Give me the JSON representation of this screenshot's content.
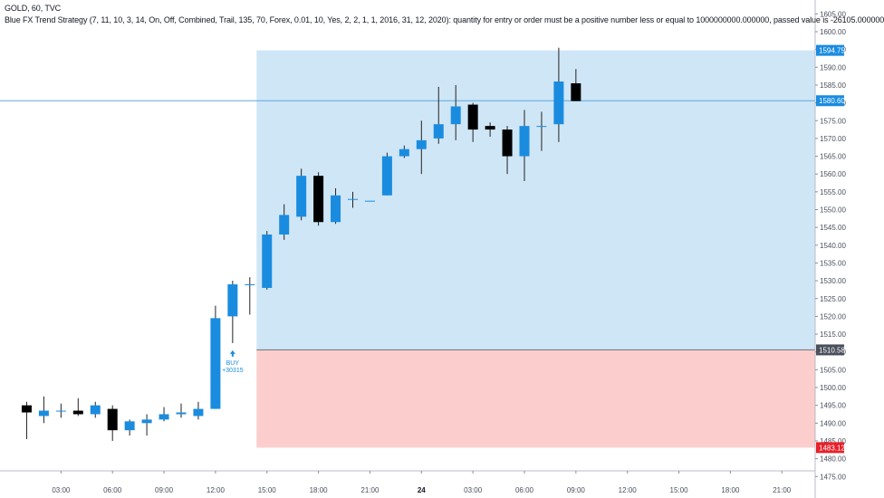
{
  "header": {
    "symbol_line": "GOLD, 60, TVC",
    "strategy_line": "Blue FX Trend Strategy (7, 11, 10, 3, 14, On, Off, Combined, Trail, 135, 70, Forex, 0.01, 10, Yes, 2, 2, 1, 1, 2016, 31, 12, 2020): quantity for entry or order must be a positive number less or equal to 1000000000.000000, passed value is -26105.000000"
  },
  "colors": {
    "bull": "#1a8ce0",
    "bear": "#000000",
    "profit_zone": "#cfe6f6",
    "stop_zone": "#fccdcd",
    "price_line": "#5ea8e0",
    "entry_tag": "#4a4f5c",
    "stop_tag": "#e8202a",
    "target_tag": "#1a8ce0",
    "buy_signal": "#1a8ce0"
  },
  "chart_data": {
    "type": "candlestick",
    "symbol": "GOLD",
    "interval": "60",
    "source": "TVC",
    "ylim": [
      1472,
      1610
    ],
    "y_ticks": [
      "1605.00",
      "1600.00",
      "1595.00",
      "1590.00",
      "1585.00",
      "1580.00",
      "1575.00",
      "1570.00",
      "1565.00",
      "1560.00",
      "1555.00",
      "1550.00",
      "1545.00",
      "1540.00",
      "1535.00",
      "1530.00",
      "1525.00",
      "1520.00",
      "1515.00",
      "1510.00",
      "1505.00",
      "1500.00",
      "1495.00",
      "1490.00",
      "1485.00",
      "1480.00",
      "1475.00"
    ],
    "x_ticks": [
      {
        "label": "03:00",
        "hour": 3,
        "bold": false
      },
      {
        "label": "06:00",
        "hour": 6,
        "bold": false
      },
      {
        "label": "09:00",
        "hour": 9,
        "bold": false
      },
      {
        "label": "12:00",
        "hour": 12,
        "bold": false
      },
      {
        "label": "15:00",
        "hour": 15,
        "bold": false
      },
      {
        "label": "18:00",
        "hour": 18,
        "bold": false
      },
      {
        "label": "21:00",
        "hour": 21,
        "bold": false
      },
      {
        "label": "24",
        "hour": 24,
        "bold": true
      },
      {
        "label": "03:00",
        "hour": 27,
        "bold": false
      },
      {
        "label": "06:00",
        "hour": 30,
        "bold": false
      },
      {
        "label": "09:00",
        "hour": 33,
        "bold": false
      },
      {
        "label": "12:00",
        "hour": 36,
        "bold": false
      },
      {
        "label": "15:00",
        "hour": 39,
        "bold": false
      },
      {
        "label": "18:00",
        "hour": 42,
        "bold": false
      },
      {
        "label": "21:00",
        "hour": 45,
        "bold": false
      }
    ],
    "candles": [
      {
        "hour": 1,
        "open": 1495.0,
        "high": 1496.0,
        "low": 1485.5,
        "close": 1493.0
      },
      {
        "hour": 2,
        "open": 1492.0,
        "high": 1497.5,
        "low": 1490.0,
        "close": 1493.5
      },
      {
        "hour": 3,
        "open": 1493.5,
        "high": 1495.5,
        "low": 1491.5,
        "close": 1493.5
      },
      {
        "hour": 4,
        "open": 1493.5,
        "high": 1497.0,
        "low": 1492.0,
        "close": 1492.5
      },
      {
        "hour": 5,
        "open": 1492.5,
        "high": 1496.0,
        "low": 1491.5,
        "close": 1495.0
      },
      {
        "hour": 6,
        "open": 1494.0,
        "high": 1495.0,
        "low": 1485.0,
        "close": 1488.0
      },
      {
        "hour": 7,
        "open": 1488.0,
        "high": 1491.0,
        "low": 1486.5,
        "close": 1490.5
      },
      {
        "hour": 8,
        "open": 1490.0,
        "high": 1492.5,
        "low": 1486.5,
        "close": 1491.0
      },
      {
        "hour": 9,
        "open": 1491.0,
        "high": 1494.5,
        "low": 1490.5,
        "close": 1492.5
      },
      {
        "hour": 10,
        "open": 1492.5,
        "high": 1495.5,
        "low": 1491.5,
        "close": 1493.0
      },
      {
        "hour": 11,
        "open": 1492.0,
        "high": 1496.0,
        "low": 1491.0,
        "close": 1494.0
      },
      {
        "hour": 12,
        "open": 1494.0,
        "high": 1523.0,
        "low": 1494.0,
        "close": 1519.5
      },
      {
        "hour": 13,
        "open": 1520.0,
        "high": 1530.0,
        "low": 1512.5,
        "close": 1529.0
      },
      {
        "hour": 14,
        "open": 1529.0,
        "high": 1531.0,
        "low": 1520.5,
        "close": 1529.0
      },
      {
        "hour": 15,
        "open": 1528.0,
        "high": 1544.0,
        "low": 1527.5,
        "close": 1543.0
      },
      {
        "hour": 16,
        "open": 1543.0,
        "high": 1551.5,
        "low": 1541.5,
        "close": 1548.5
      },
      {
        "hour": 17,
        "open": 1548.0,
        "high": 1561.5,
        "low": 1547.0,
        "close": 1559.5
      },
      {
        "hour": 18,
        "open": 1559.5,
        "high": 1560.5,
        "low": 1545.5,
        "close": 1546.5
      },
      {
        "hour": 19,
        "open": 1546.5,
        "high": 1556.0,
        "low": 1546.0,
        "close": 1554.0
      },
      {
        "hour": 20,
        "open": 1553.0,
        "high": 1555.0,
        "low": 1550.5,
        "close": 1553.0
      },
      {
        "hour": 21,
        "open": 1552.5,
        "high": 1552.5,
        "low": 1552.5,
        "close": 1552.5
      },
      {
        "hour": 22,
        "open": 1554.0,
        "high": 1566.0,
        "low": 1554.0,
        "close": 1565.0
      },
      {
        "hour": 23,
        "open": 1565.0,
        "high": 1568.0,
        "low": 1564.5,
        "close": 1567.0
      },
      {
        "hour": 24,
        "open": 1567.0,
        "high": 1575.0,
        "low": 1560.0,
        "close": 1569.5
      },
      {
        "hour": 25,
        "open": 1570.0,
        "high": 1584.5,
        "low": 1568.5,
        "close": 1574.0
      },
      {
        "hour": 26,
        "open": 1574.0,
        "high": 1585.0,
        "low": 1569.5,
        "close": 1579.0
      },
      {
        "hour": 27,
        "open": 1579.5,
        "high": 1580.0,
        "low": 1569.0,
        "close": 1572.5
      },
      {
        "hour": 28,
        "open": 1573.5,
        "high": 1574.5,
        "low": 1570.5,
        "close": 1572.5
      },
      {
        "hour": 29,
        "open": 1572.5,
        "high": 1573.5,
        "low": 1560.0,
        "close": 1565.0
      },
      {
        "hour": 30,
        "open": 1565.0,
        "high": 1578.0,
        "low": 1558.0,
        "close": 1573.5
      },
      {
        "hour": 31,
        "open": 1573.5,
        "high": 1577.5,
        "low": 1566.5,
        "close": 1573.5
      },
      {
        "hour": 32,
        "open": 1574.0,
        "high": 1595.5,
        "low": 1569.0,
        "close": 1586.0
      },
      {
        "hour": 33,
        "open": 1585.5,
        "high": 1589.5,
        "low": 1580.5,
        "close": 1580.5
      }
    ],
    "current_price": "1580.60",
    "position": {
      "start_hour": 14.5,
      "end_hour": 48,
      "entry": "1510.58",
      "target": "1594.75",
      "stop": "1483.12"
    },
    "signal": {
      "hour": 13,
      "price": 1512.5,
      "label": "BUY",
      "quantity": "+30315"
    }
  }
}
